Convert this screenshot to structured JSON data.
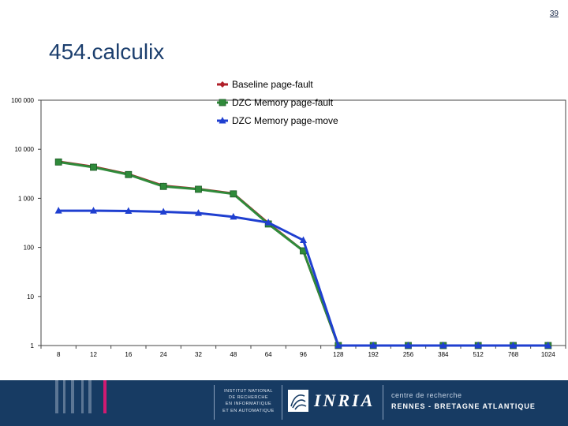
{
  "page_number": "39",
  "title": "454.calculix",
  "chart_data": {
    "type": "line",
    "title": "454.calculix",
    "xlabel": "",
    "ylabel": "",
    "y_scale": "log",
    "ylim": [
      1,
      100000
    ],
    "y_ticks": [
      "1",
      "10",
      "100",
      "1 000",
      "10 000",
      "100 000"
    ],
    "y_tick_values": [
      1,
      10,
      100,
      1000,
      10000,
      100000
    ],
    "categories": [
      "8",
      "12",
      "16",
      "24",
      "32",
      "48",
      "64",
      "96",
      "128",
      "192",
      "256",
      "384",
      "512",
      "768",
      "1024"
    ],
    "legend_position": "top-right",
    "series": [
      {
        "name": "Baseline page-fault",
        "color": "#b0202a",
        "marker": "diamond",
        "values": [
          5600,
          4400,
          3100,
          1800,
          1550,
          1250,
          310,
          85,
          1,
          1,
          1,
          1,
          1,
          1,
          1
        ]
      },
      {
        "name": "DZC Memory page-fault",
        "color": "#2f8a3a",
        "marker": "square",
        "values": [
          5500,
          4300,
          3050,
          1750,
          1530,
          1230,
          300,
          85,
          1,
          1,
          1,
          1,
          1,
          1,
          1
        ]
      },
      {
        "name": "DZC Memory page-move",
        "color": "#1f3fd0",
        "marker": "triangle",
        "values": [
          560,
          560,
          550,
          530,
          500,
          420,
          320,
          140,
          1,
          1,
          1,
          1,
          1,
          1,
          1
        ]
      }
    ]
  },
  "footer": {
    "institute_lines": [
      "INSTITUT NATIONAL",
      "DE RECHERCHE",
      "EN INFORMATIQUE",
      "ET EN AUTOMATIQUE"
    ],
    "logo_text": "INRIA",
    "center_line1": "centre de recherche",
    "center_line2": "RENNES - BRETAGNE ATLANTIQUE"
  }
}
